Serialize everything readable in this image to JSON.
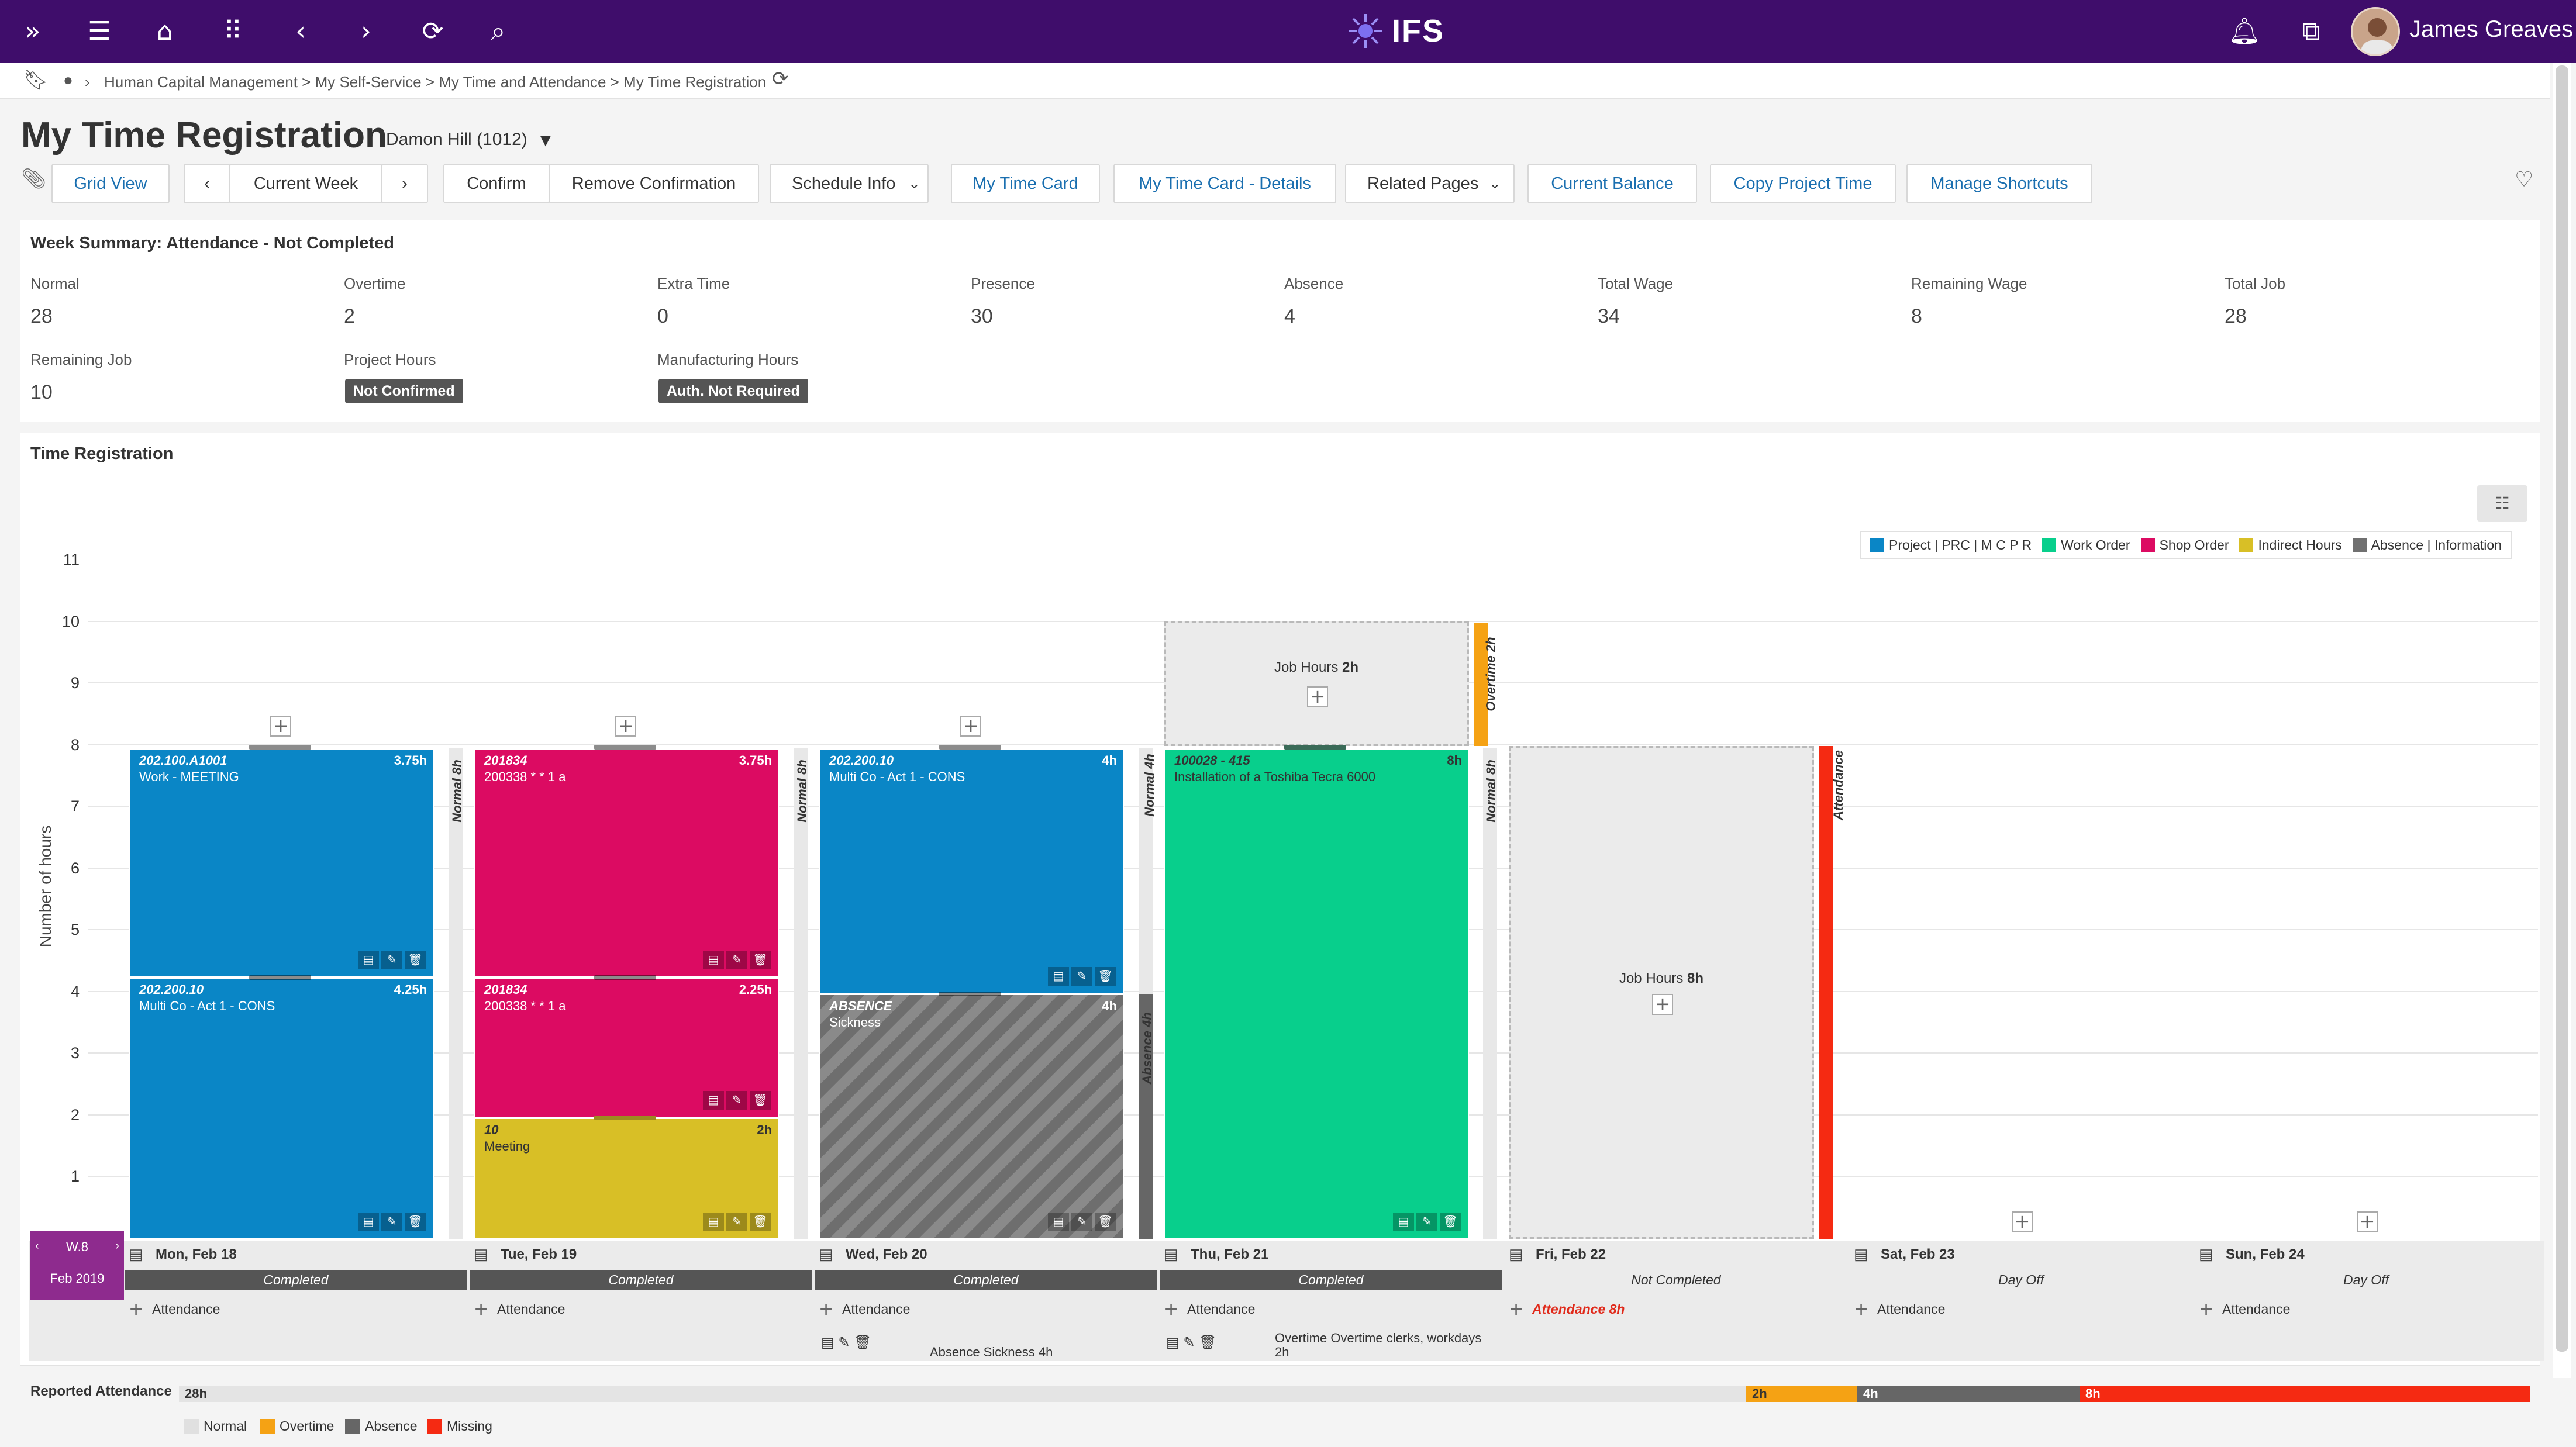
{
  "header": {
    "logo": "IFS",
    "user": "James Greaves"
  },
  "breadcrumb": {
    "path": "Human Capital Management > My Self-Service > My Time and Attendance > My Time Registration"
  },
  "page": {
    "title": "My Time Registration",
    "employee": "Damon Hill (1012)"
  },
  "toolbar": {
    "grid_view": "Grid View",
    "prev": "‹",
    "current_week": "Current Week",
    "next": "›",
    "confirm": "Confirm",
    "remove_confirmation": "Remove Confirmation",
    "schedule_info": "Schedule Info",
    "my_time_card": "My Time Card",
    "my_time_card_details": "My Time Card - Details",
    "related_pages": "Related Pages",
    "current_balance": "Current Balance",
    "copy_project_time": "Copy Project Time",
    "manage_shortcuts": "Manage Shortcuts"
  },
  "summary": {
    "title": "Week Summary: Attendance - Not Completed",
    "fields": [
      {
        "label": "Normal",
        "value": "28"
      },
      {
        "label": "Overtime",
        "value": "2"
      },
      {
        "label": "Extra Time",
        "value": "0"
      },
      {
        "label": "Presence",
        "value": "30"
      },
      {
        "label": "Absence",
        "value": "4"
      },
      {
        "label": "Total Wage",
        "value": "34"
      },
      {
        "label": "Remaining Wage",
        "value": "8"
      },
      {
        "label": "Total Job",
        "value": "28"
      },
      {
        "label": "Remaining Job",
        "value": "10"
      },
      {
        "label": "Project Hours",
        "value": "Not Confirmed"
      },
      {
        "label": "Manufacturing Hours",
        "value": "Auth. Not Required"
      }
    ]
  },
  "registration": {
    "title": "Time Registration",
    "ylabel": "Number of hours",
    "yticks": [
      "11",
      "10",
      "9",
      "8",
      "7",
      "6",
      "5",
      "4",
      "3",
      "2",
      "1"
    ],
    "legend": [
      "Project | PRC | M C P R",
      "Work Order",
      "Shop Order",
      "Indirect Hours",
      "Absence | Information"
    ],
    "colors": {
      "project": "#0a86c6",
      "work_order": "#08cf8c",
      "shop_order": "#dc0b62",
      "indirect": "#d8bf26",
      "absence": "#707070",
      "overtime": "#f5a214",
      "missing": "#f52a12"
    },
    "blocks": [
      {
        "code": "202.100.A1001",
        "hrs": "3.75h",
        "desc": "Work - MEETING"
      },
      {
        "code": "202.200.10",
        "hrs": "4.25h",
        "desc": "Multi Co - Act 1 - CONS"
      },
      {
        "code": "201834",
        "hrs": "3.75h",
        "desc": "200338 * * 1 a"
      },
      {
        "code": "201834",
        "hrs": "2.25h",
        "desc": "200338 * * 1 a"
      },
      {
        "code": "10",
        "hrs": "2h",
        "desc": "Meeting"
      },
      {
        "code": "202.200.10",
        "hrs": "4h",
        "desc": "Multi Co - Act 1 - CONS"
      },
      {
        "code": "ABSENCE",
        "hrs": "4h",
        "desc": "Sickness"
      },
      {
        "code": "100028 - 415",
        "hrs": "8h",
        "desc": "Installation of a Toshiba Tecra 6000"
      }
    ],
    "side_labels": [
      "Normal 8h",
      "Normal 8h",
      "Normal 4h",
      "Absence 4h",
      "Normal 8h",
      "Overtime 2h",
      "Attendance"
    ],
    "job_hours_thu": "Job Hours",
    "job_hours_thu_val": "2h",
    "job_hours_fri": "Job Hours",
    "job_hours_fri_val": "8h"
  },
  "week": {
    "label": "W.8",
    "month": "Feb 2019"
  },
  "days": [
    {
      "date": "Mon, Feb 18",
      "status": "Completed",
      "attendance": "Attendance"
    },
    {
      "date": "Tue, Feb 19",
      "status": "Completed",
      "attendance": "Attendance"
    },
    {
      "date": "Wed, Feb 20",
      "status": "Completed",
      "attendance": "Attendance"
    },
    {
      "date": "Thu, Feb 21",
      "status": "Completed",
      "attendance": "Attendance"
    },
    {
      "date": "Fri, Feb 22",
      "status": "Not Completed",
      "attendance": "Attendance 8h"
    },
    {
      "date": "Sat, Feb 23",
      "status": "Day Off",
      "attendance": "Attendance"
    },
    {
      "date": "Sun, Feb 24",
      "status": "Day Off",
      "attendance": "Attendance"
    }
  ],
  "day_notes": {
    "wed": "Absence Sickness 4h",
    "thu_line1": "Overtime Overtime clerks, workdays",
    "thu_line2": "2h"
  },
  "reported": {
    "label": "Reported Attendance",
    "normal": "28h",
    "overtime": "2h",
    "absence": "4h",
    "missing": "8h",
    "legend": [
      "Normal",
      "Overtime",
      "Absence",
      "Missing"
    ]
  }
}
